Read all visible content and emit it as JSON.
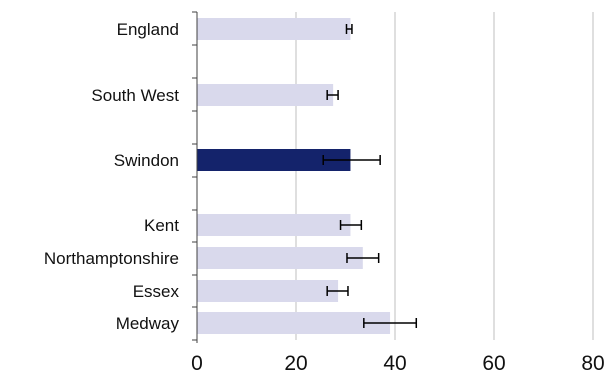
{
  "chart_data": {
    "type": "bar",
    "orientation": "horizontal",
    "categories": [
      "England",
      "South West",
      "Swindon",
      "Kent",
      "Northamptonshire",
      "Essex",
      "Medway"
    ],
    "values": [
      31,
      27.5,
      31,
      31,
      33.5,
      28.5,
      39
    ],
    "error_low": [
      30.2,
      26.3,
      25.5,
      29,
      30.3,
      26.3,
      33.7
    ],
    "error_high": [
      31.3,
      28.5,
      37,
      33.2,
      36.7,
      30.5,
      44.3
    ],
    "highlight": "Swindon",
    "xlim": [
      0,
      80
    ],
    "xticks": [
      0,
      20,
      40,
      60,
      80
    ],
    "xtick_labels": [
      "0",
      "20",
      "40",
      "60",
      "80"
    ],
    "grid": "vertical",
    "colors": {
      "bar": "#d9d9ec",
      "highlight_bar": "#14236b",
      "grid": "#bfbfbf",
      "axis": "#404040",
      "error_bar": "#000000"
    }
  }
}
